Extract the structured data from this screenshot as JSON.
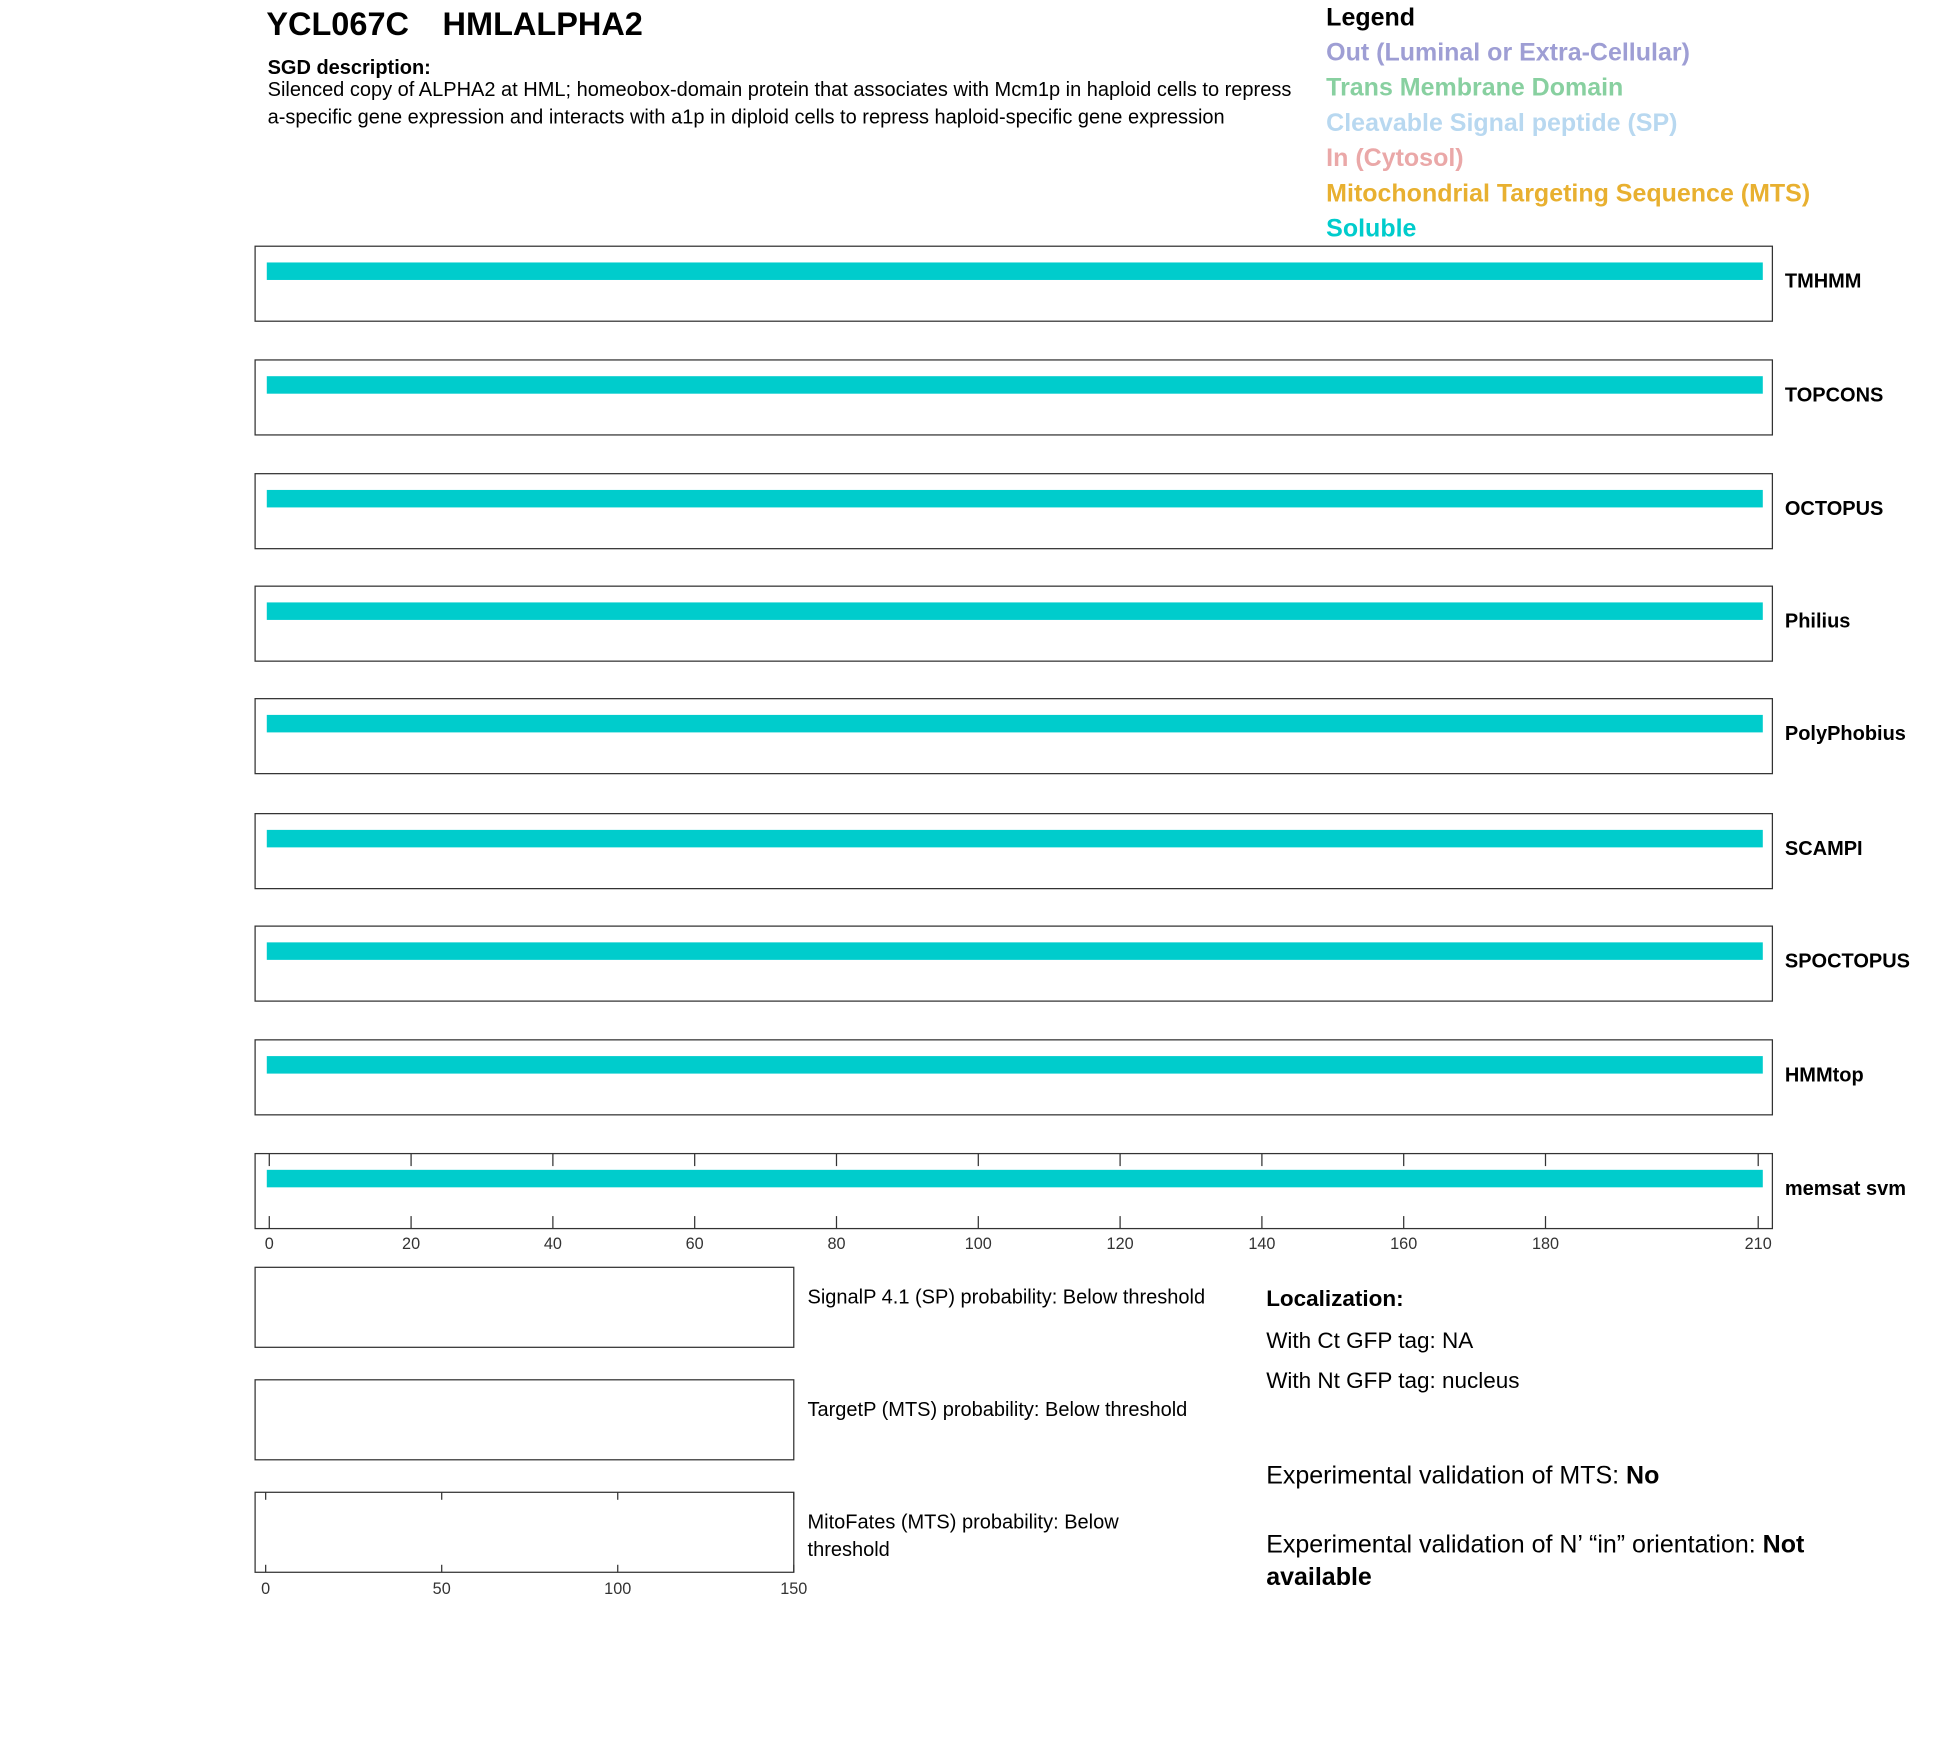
{
  "header": {
    "gene_id": "YCL067C",
    "gene_name": "HMLALPHA2",
    "description_label": "SGD description:",
    "description": "Silenced copy of ALPHA2 at HML; homeobox-domain protein that associates with Mcm1p in haploid cells to repress a-specific gene expression and interacts with a1p in diploid cells to repress haploid-specific gene expression"
  },
  "legend": {
    "title": "Legend",
    "items": [
      {
        "label": "Out (Luminal or Extra-Cellular)",
        "color": "#9e9ed4"
      },
      {
        "label": "Trans Membrane Domain",
        "color": "#88d0a0"
      },
      {
        "label": "Cleavable Signal peptide (SP)",
        "color": "#b8d8f0"
      },
      {
        "label": "In (Cytosol)",
        "color": "#eaa8a8"
      },
      {
        "label": "Mitochondrial Targeting Sequence (MTS)",
        "color": "#e8b030"
      },
      {
        "label": "Soluble",
        "color": "#00cccc"
      }
    ]
  },
  "topology": {
    "xlim": [
      -2,
      212
    ],
    "xticks": [
      0,
      20,
      40,
      60,
      80,
      100,
      120,
      140,
      160,
      180,
      210
    ],
    "tracks": [
      {
        "name": "TMHMM",
        "segments": [
          {
            "start": 0,
            "end": 211,
            "color": "#00cccc"
          }
        ]
      },
      {
        "name": "TOPCONS",
        "segments": [
          {
            "start": 0,
            "end": 211,
            "color": "#00cccc"
          }
        ]
      },
      {
        "name": "OCTOPUS",
        "segments": [
          {
            "start": 0,
            "end": 211,
            "color": "#00cccc"
          }
        ]
      },
      {
        "name": "Philius",
        "segments": [
          {
            "start": 0,
            "end": 211,
            "color": "#00cccc"
          }
        ]
      },
      {
        "name": "PolyPhobius",
        "segments": [
          {
            "start": 0,
            "end": 211,
            "color": "#00cccc"
          }
        ]
      },
      {
        "name": "SCAMPI",
        "segments": [
          {
            "start": 0,
            "end": 211,
            "color": "#00cccc"
          }
        ]
      },
      {
        "name": "SPOCTOPUS",
        "segments": [
          {
            "start": 0,
            "end": 211,
            "color": "#00cccc"
          }
        ]
      },
      {
        "name": "HMMtop",
        "segments": [
          {
            "start": 0,
            "end": 211,
            "color": "#00cccc"
          }
        ]
      },
      {
        "name": "memsat svm",
        "segments": [
          {
            "start": 0,
            "end": 211,
            "color": "#00cccc"
          }
        ]
      }
    ]
  },
  "probability": {
    "xlim": [
      -3,
      150
    ],
    "xticks": [
      0,
      50,
      100,
      150
    ],
    "panels": [
      {
        "label": "SignalP 4.1 (SP) probability: Below threshold"
      },
      {
        "label": "TargetP (MTS) probability: Below threshold"
      },
      {
        "label": "MitoFates (MTS) probability: Below threshold"
      }
    ]
  },
  "localization": {
    "title": "Localization:",
    "ct": "With Ct GFP tag: NA",
    "nt": "With Nt GFP tag: nucleus",
    "mts_label": "Experimental validation of MTS:",
    "mts_value": "No",
    "orientation_label": "Experimental validation of N’ “in” orientation:",
    "orientation_value": "Not available"
  }
}
